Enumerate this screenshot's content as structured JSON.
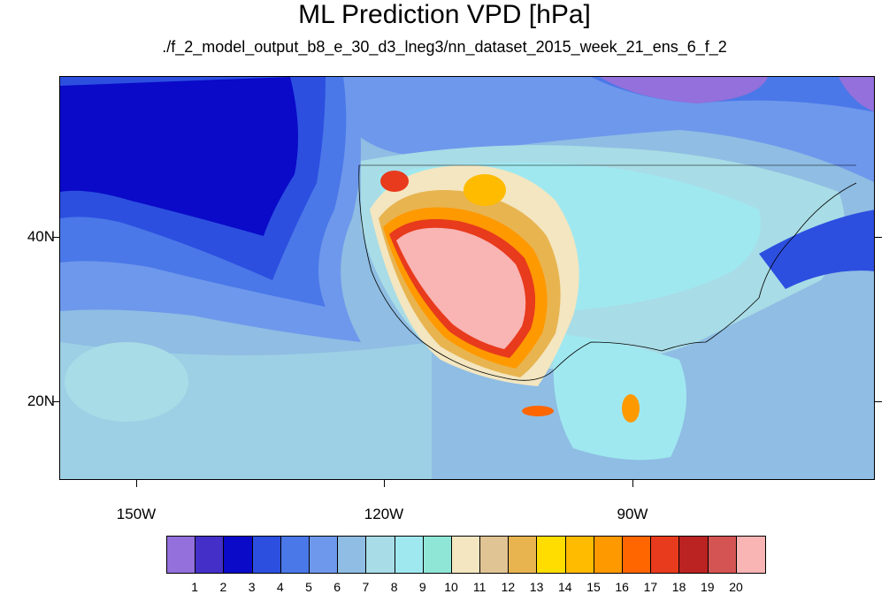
{
  "title": "ML Prediction VPD [hPa]",
  "subtitle": "./f_2_model_output_b8_e_30_d3_lneg3/nn_dataset_2015_week_21_ens_6_f_2",
  "longitude_labels": [
    "150W",
    "120W",
    "90W"
  ],
  "latitude_labels": [
    "40N",
    "20N"
  ],
  "colorbar": {
    "labels": [
      "1",
      "2",
      "3",
      "4",
      "5",
      "6",
      "7",
      "8",
      "9",
      "10",
      "11",
      "12",
      "13",
      "14",
      "15",
      "16",
      "17",
      "18",
      "19",
      "20"
    ],
    "colors": [
      "#9370db",
      "#4430c8",
      "#0a0ac8",
      "#2c4fe0",
      "#4a78e8",
      "#6e98ec",
      "#8fbde3",
      "#a8dce6",
      "#a0e8f0",
      "#90e6d6",
      "#f3e6c0",
      "#e0c494",
      "#e8b450",
      "#ffdd00",
      "#ffbb00",
      "#ff9900",
      "#ff6600",
      "#e83a1c",
      "#bb2222",
      "#d45454",
      "#f9b4b4"
    ]
  },
  "map": {
    "ocean_color": "#8fbde3",
    "deep_pacific_color": "#0a0ac8",
    "desert_color": "#f9b4b4"
  }
}
